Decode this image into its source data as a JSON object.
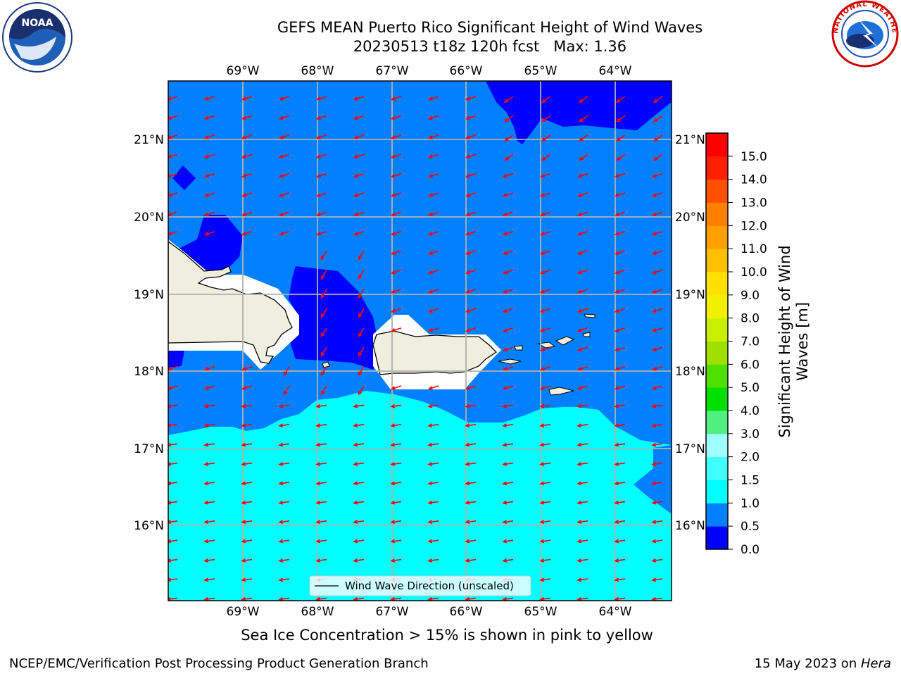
{
  "title_line1": "GEFS MEAN Puerto Rico Significant Height of Wind Waves",
  "title_line2": "20230513 t18z 120h fcst   Max: 1.36",
  "lon_labels": [
    "69°W",
    "68°W",
    "67°W",
    "66°W",
    "65°W",
    "64°W"
  ],
  "lat_labels": [
    "21°N",
    "20°N",
    "19°N",
    "18°N",
    "17°N",
    "16°N"
  ],
  "legend_label": "Wind Wave Direction (unscaled)",
  "colorbar": {
    "label_line1": "Significant Height of Wind",
    "label_line2": "Waves [m]",
    "ticks": [
      "0.0",
      "0.5",
      "1.0",
      "1.5",
      "2.0",
      "3.0",
      "4.0",
      "5.0",
      "6.0",
      "7.0",
      "8.0",
      "9.0",
      "10.0",
      "11.0",
      "12.0",
      "13.0",
      "14.0",
      "15.0"
    ],
    "colors": [
      "#0000ff",
      "#0080ff",
      "#00ffff",
      "#40ffff",
      "#a0ffff",
      "#50f080",
      "#00e000",
      "#50e000",
      "#a0e000",
      "#c8f000",
      "#f0f000",
      "#ffe000",
      "#ffc000",
      "#ffa000",
      "#ff8000",
      "#ff5000",
      "#ff2000",
      "#ff0000"
    ]
  },
  "subtitle": "Sea Ice Concentration > 15% is shown in pink to yellow",
  "footer_left": "NCEP/EMC/Verification Post Processing Product Generation Branch",
  "footer_right_prefix": "15 May 2023 on ",
  "footer_right_host": "Hera",
  "logos": {
    "noaa_text": "NOAA",
    "nws_text": "NATIONAL WEATHER SERVICE"
  },
  "colors": {
    "land": "#efefdf",
    "arrow": "#ff0000",
    "grid": "#b0b0b0"
  }
}
